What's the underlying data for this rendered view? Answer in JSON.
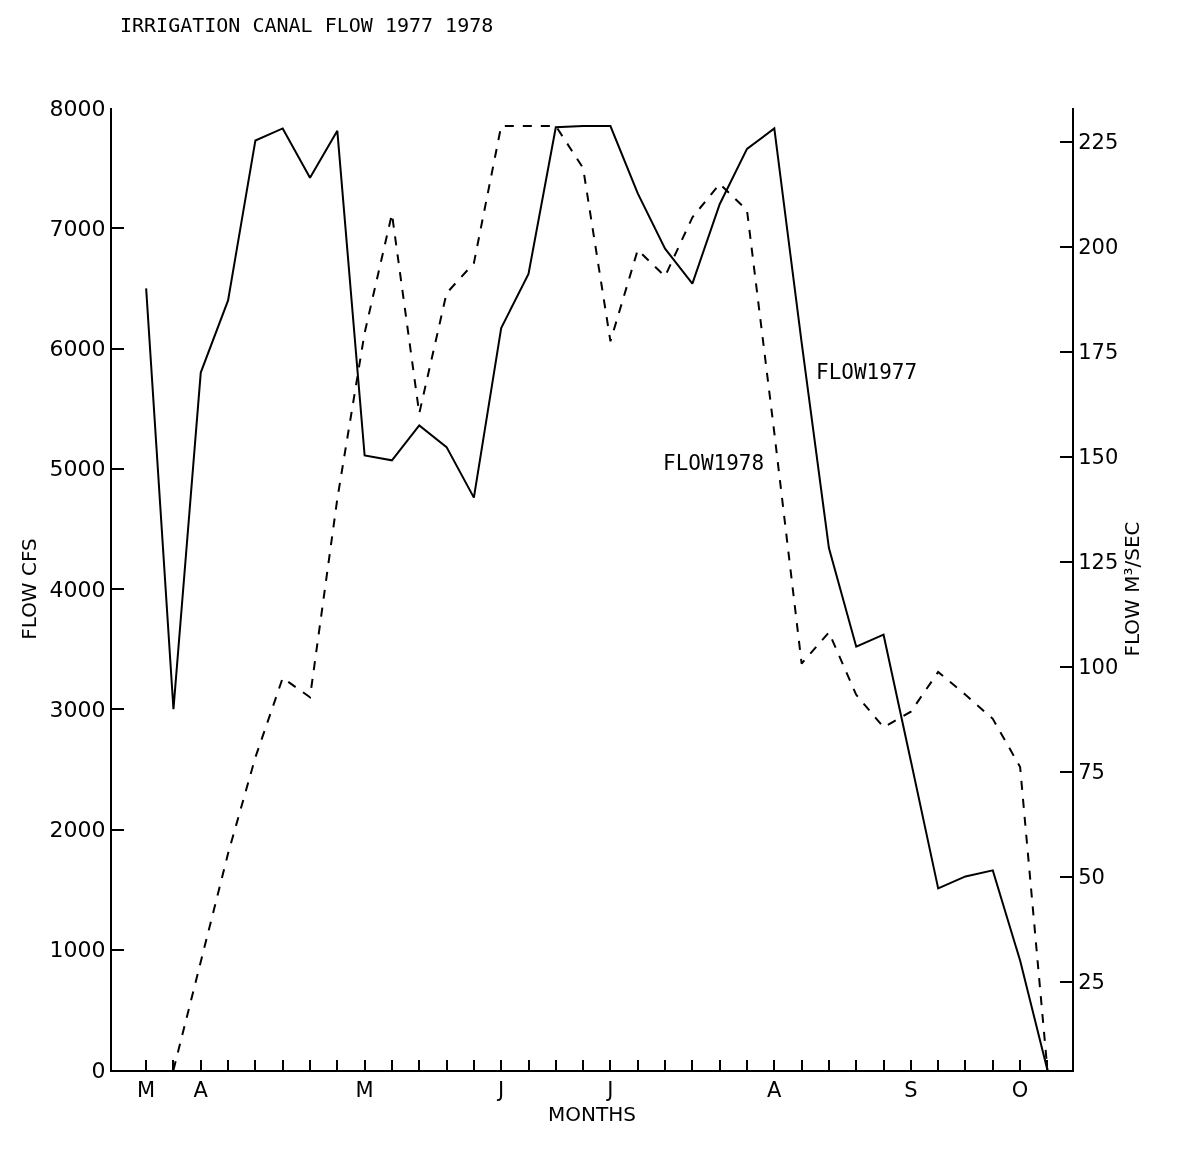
{
  "chart_data": {
    "type": "line",
    "title": "IRRIGATION CANAL FLOW 1977 1978",
    "xlabel": "MONTHS",
    "ylabel": "FLOW CFS",
    "y2label": "FLOW M³/SEC",
    "categories": [
      "M",
      null,
      "A",
      null,
      null,
      null,
      null,
      null,
      "M",
      null,
      null,
      null,
      null,
      "J",
      null,
      null,
      null,
      "J",
      null,
      null,
      null,
      null,
      null,
      "A",
      null,
      null,
      null,
      null,
      "S",
      null,
      null,
      null,
      "O",
      null
    ],
    "series": [
      {
        "name": "FLOW1977",
        "color": "#000000",
        "line_style": "solid",
        "values": [
          6500,
          3000,
          5800,
          6400,
          7730,
          7830,
          7420,
          7810,
          5110,
          5070,
          5360,
          5180,
          4760,
          6170,
          6620,
          7840,
          7850,
          7850,
          7290,
          6830,
          6540,
          7200,
          7660,
          7830,
          6050,
          4340,
          3520,
          3620,
          2570,
          1510,
          1610,
          1660,
          910,
          0
        ]
      },
      {
        "name": "FLOW1978",
        "color": "#000000",
        "line_style": "dashed",
        "values": [
          null,
          0,
          900,
          1800,
          2600,
          3260,
          3100,
          4750,
          6130,
          7120,
          5460,
          6460,
          6710,
          7850,
          7850,
          7850,
          7500,
          6060,
          6820,
          6600,
          7090,
          7370,
          7150,
          5300,
          3380,
          3640,
          3120,
          2850,
          2980,
          3310,
          3120,
          2920,
          2520,
          0
        ]
      }
    ],
    "ylim": [
      0,
      8000
    ],
    "yticks": [
      0,
      1000,
      2000,
      3000,
      4000,
      5000,
      6000,
      7000,
      8000
    ],
    "y2lim": [
      4,
      233
    ],
    "y2ticks": [
      25,
      50,
      75,
      100,
      125,
      150,
      175,
      200,
      225
    ],
    "legend": false,
    "marker": "none"
  }
}
